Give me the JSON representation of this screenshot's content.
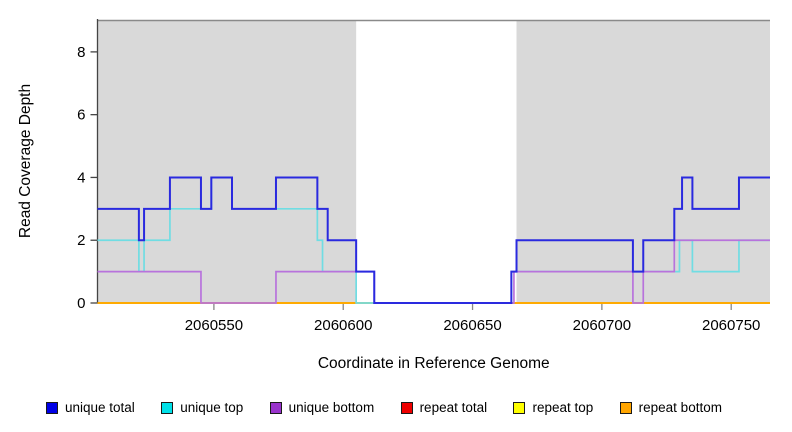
{
  "chart_data": {
    "type": "line",
    "subtype": "step-coverage",
    "title": "",
    "xlabel": "Coordinate in Reference Genome",
    "ylabel": "Read Coverage Depth",
    "xlim": [
      2060505,
      2060765
    ],
    "ylim": [
      0,
      9
    ],
    "x_ticks": [
      2060550,
      2060600,
      2060650,
      2060700,
      2060750
    ],
    "y_ticks": [
      0,
      2,
      4,
      6,
      8
    ],
    "grid": false,
    "legend_position": "bottom",
    "colors": {
      "plot_background_shaded": "#d9d9d9",
      "gap_background": "#ffffff",
      "top_border": "#8a8a8a",
      "y_axis": "#444444",
      "x_tick": "#888888",
      "text": "#000000"
    },
    "background_regions": [
      {
        "name": "shaded-region-left",
        "x1": 2060505,
        "x2": 2060605
      },
      {
        "name": "shaded-region-right",
        "x1": 2060667,
        "x2": 2060765
      }
    ],
    "series": [
      {
        "name": "repeat total",
        "line_color": "#ee0000",
        "legend_color": "#ee0000",
        "steps": [
          [
            2060505,
            0
          ]
        ]
      },
      {
        "name": "repeat top",
        "line_color": "#ffff00",
        "legend_color": "#ffff00",
        "steps": [
          [
            2060505,
            0
          ]
        ]
      },
      {
        "name": "repeat bottom",
        "line_color": "#ffa500",
        "legend_color": "#ffa500",
        "steps": [
          [
            2060505,
            0
          ]
        ]
      },
      {
        "name": "unique top",
        "line_color": "#70dde3",
        "legend_color": "#00e0e8",
        "steps": [
          [
            2060505,
            2
          ],
          [
            2060521,
            1
          ],
          [
            2060523,
            2
          ],
          [
            2060533,
            3
          ],
          [
            2060549,
            4
          ],
          [
            2060557,
            3
          ],
          [
            2060590,
            2
          ],
          [
            2060592,
            1
          ],
          [
            2060605,
            0
          ],
          [
            2060665,
            1
          ],
          [
            2060730,
            2
          ],
          [
            2060735,
            1
          ],
          [
            2060753,
            2
          ]
        ]
      },
      {
        "name": "unique bottom",
        "line_color": "#b873dc",
        "legend_color": "#9933cc",
        "steps": [
          [
            2060505,
            1
          ],
          [
            2060545,
            0
          ],
          [
            2060574,
            1
          ],
          [
            2060612,
            0
          ],
          [
            2060666,
            1
          ],
          [
            2060712,
            0
          ],
          [
            2060716,
            1
          ],
          [
            2060728,
            2
          ]
        ]
      },
      {
        "name": "unique total",
        "line_color": "#2a2adf",
        "legend_color": "#0000e6",
        "steps": [
          [
            2060505,
            3
          ],
          [
            2060521,
            2
          ],
          [
            2060523,
            3
          ],
          [
            2060533,
            4
          ],
          [
            2060545,
            3
          ],
          [
            2060549,
            4
          ],
          [
            2060557,
            3
          ],
          [
            2060574,
            4
          ],
          [
            2060590,
            3
          ],
          [
            2060594,
            2
          ],
          [
            2060605,
            1
          ],
          [
            2060612,
            0
          ],
          [
            2060665,
            1
          ],
          [
            2060667,
            2
          ],
          [
            2060712,
            1
          ],
          [
            2060716,
            2
          ],
          [
            2060728,
            3
          ],
          [
            2060731,
            4
          ],
          [
            2060735,
            3
          ],
          [
            2060753,
            4
          ]
        ]
      }
    ],
    "legend": [
      {
        "label": "unique total",
        "color": "#0000e6"
      },
      {
        "label": "unique top",
        "color": "#00e0e8"
      },
      {
        "label": "unique bottom",
        "color": "#9933cc"
      },
      {
        "label": "repeat total",
        "color": "#ee0000"
      },
      {
        "label": "repeat top",
        "color": "#ffff00"
      },
      {
        "label": "repeat bottom",
        "color": "#ffa500"
      }
    ]
  }
}
